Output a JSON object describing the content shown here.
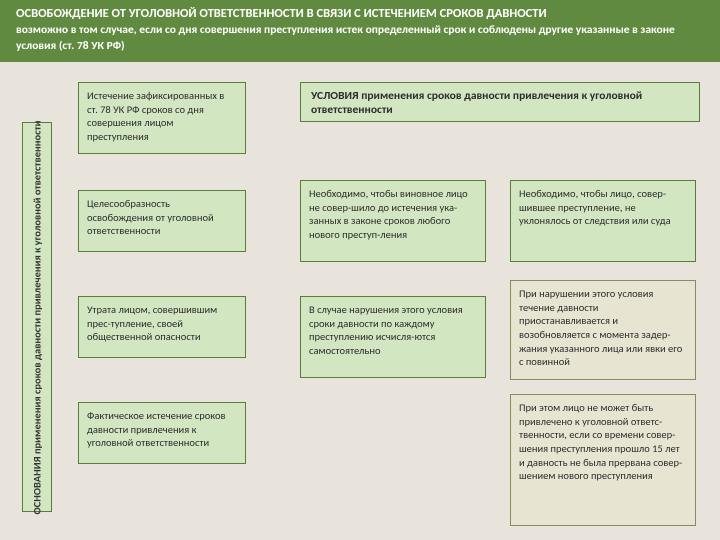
{
  "header": {
    "title": "ОСВОБОЖДЕНИЕ ОТ УГОЛОВНОЙ ОТВЕТСТВЕННОСТИ В СВЯЗИ С ИСТЕЧЕНИЕМ СРОКОВ ДАВНОСТИ",
    "subtitle": "возможно в том случае, если со дня совершения преступления истек определенный срок и соблюдены другие указанные в законе условия (ст. 78 УК РФ)"
  },
  "vlabel": "ОСНОВАНИЯ применения сроков давности привлечения к уголовной ответственности",
  "grounds": {
    "b1": "Истечение зафиксированных в ст. 78 УК РФ сроков со дня совершения лицом преступления",
    "b2": "Целесообразность освобождения от уголовной ответственности",
    "b3": "Утрата лицом, совершившим прес-тупление, своей общественной опасности",
    "b4": "Фактическое истечение сроков давности привлечения к уголовной ответственности"
  },
  "conditions": {
    "title": "УСЛОВИЯ применения сроков давности привлечения к уголовной ответственности",
    "c1": "Необходимо, чтобы виновное лицо не совер-шило до истечения ука-занных в законе сроков любого нового преступ-ления",
    "c2": "Необходимо, чтобы лицо, совер-шившее преступление, не уклонялось от следствия или суда",
    "c3": "В случае нарушения этого условия сроки давности по каждому преступлению исчисля-ются самостоятельно",
    "c4": "При нарушении этого условия течение давности приостанавливается и возобновляется с момента задер-жания указанного лица или явки его с повинной",
    "c5": "При этом лицо не может быть привлечено к уголовной ответс-твенности, если со времени совер-шения преступления прошло 15 лет и давность не была прервана совер-шением нового преступления"
  },
  "colors": {
    "bg": "#e8e4dc",
    "header_bg": "#608a3f",
    "box_bg": "#d2e6c2",
    "box_border": "#5a7d3e",
    "alt_bg": "#e8e4d2",
    "alt_border": "#8a8a5e"
  }
}
